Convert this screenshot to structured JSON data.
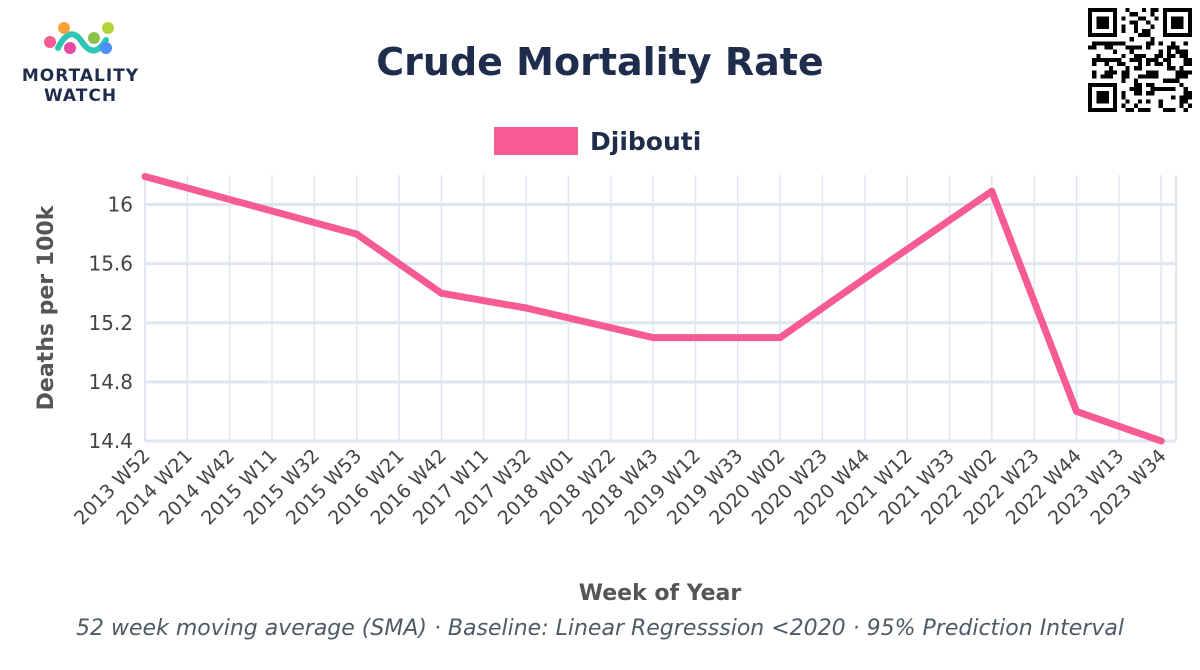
{
  "logo": {
    "line1": "MORTALITY",
    "line2": "WATCH"
  },
  "colors": {
    "series": "#f75b93",
    "grid": "#dfe5f1",
    "text": "#1f2d4d"
  },
  "chart_data": {
    "type": "line",
    "title": "Crude Mortality Rate",
    "xlabel": "Week of Year",
    "ylabel": "Deaths per 100k",
    "footnote": "52 week moving average (SMA) · Baseline: Linear Regresssion <2020 · 95% Prediction Interval",
    "legend_position": "top-center",
    "grid": true,
    "categories": [
      "2013 W52",
      "2014 W21",
      "2014 W42",
      "2015 W11",
      "2015 W32",
      "2015 W53",
      "2016 W21",
      "2016 W42",
      "2017 W11",
      "2017 W32",
      "2018 W01",
      "2018 W22",
      "2018 W43",
      "2019 W12",
      "2019 W33",
      "2020 W02",
      "2020 W23",
      "2020 W44",
      "2021 W12",
      "2021 W33",
      "2022 W02",
      "2022 W23",
      "2022 W44",
      "2023 W13",
      "2023 W34"
    ],
    "yticks": [
      14.4,
      14.8,
      15.2,
      15.6,
      16
    ],
    "ylim": [
      14.4,
      16.2
    ],
    "series": [
      {
        "name": "Djibouti",
        "x": [
          "2013 W52",
          "2015 W53",
          "2016 W42",
          "2017 W32",
          "2018 W43",
          "2020 W02",
          "2020 W44",
          "2022 W02",
          "2022 W44",
          "2023 W34"
        ],
        "values": [
          16.19,
          15.8,
          15.4,
          15.3,
          15.1,
          15.1,
          15.5,
          16.09,
          14.6,
          14.4
        ]
      }
    ]
  }
}
